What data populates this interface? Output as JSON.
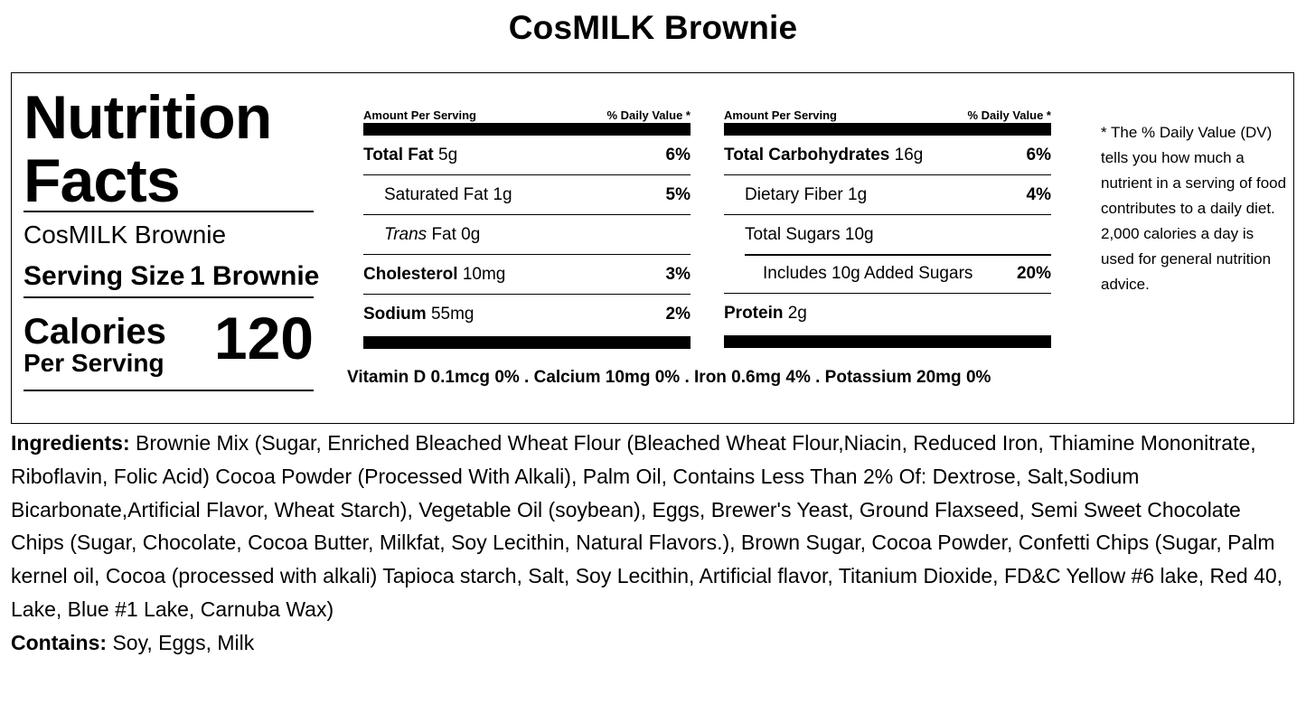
{
  "title": "CosMILK Brownie",
  "label": {
    "heading_line1": "Nutrition",
    "heading_line2": "Facts",
    "product_name": "CosMILK Brownie",
    "serving_size_label": "Serving Size",
    "serving_size_value": "1 Brownie",
    "calories_label": "Calories",
    "per_serving_label": "Per Serving",
    "calories_value": "120",
    "amount_header": "Amount Per Serving",
    "dv_header": "% Daily Value *",
    "left_table": [
      {
        "name": "Total Fat",
        "amount": "5g",
        "dv": "6%"
      },
      {
        "name": "Saturated Fat",
        "amount": "1g",
        "dv": "5%"
      },
      {
        "name": "Trans",
        "amount": "Fat 0g",
        "dv": ""
      },
      {
        "name": "Cholesterol",
        "amount": "10mg",
        "dv": "3%"
      },
      {
        "name": "Sodium",
        "amount": "55mg",
        "dv": "2%"
      }
    ],
    "right_table": [
      {
        "name": "Total Carbohydrates",
        "amount": "16g",
        "dv": "6%"
      },
      {
        "name": "Dietary Fiber",
        "amount": "1g",
        "dv": "4%"
      },
      {
        "name": "Total Sugars",
        "amount": "10g",
        "dv": ""
      },
      {
        "name": "Includes 10g Added Sugars",
        "amount": "",
        "dv": "20%"
      },
      {
        "name": "Protein",
        "amount": "2g",
        "dv": ""
      }
    ],
    "vitamins": "Vitamin D 0.1mcg 0% . Calcium 10mg 0% . Iron 0.6mg 4% . Potassium 20mg 0%",
    "footnote": "* The % Daily Value (DV) tells you how much a nutrient in a serving of food contributes to a daily diet. 2,000 calories a day is used for general nutrition advice."
  },
  "ingredients_label": "Ingredients:",
  "ingredients_text": "Brownie Mix (Sugar, Enriched Bleached Wheat Flour (Bleached Wheat Flour,Niacin, Reduced Iron, Thiamine Mononitrate, Riboflavin, Folic Acid) Cocoa Powder (Processed With Alkali), Palm Oil, Contains Less Than 2% Of: Dextrose, Salt,Sodium Bicarbonate,Artificial Flavor, Wheat Starch), Vegetable Oil (soybean), Eggs, Brewer's Yeast, Ground Flaxseed, Semi Sweet Chocolate Chips (Sugar, Chocolate, Cocoa Butter, Milkfat, Soy Lecithin, Natural Flavors.), Brown Sugar, Cocoa Powder, Confetti Chips (Sugar, Palm kernel oil, Cocoa (processed with alkali) Tapioca starch, Salt, Soy Lecithin, Artificial flavor, Titanium Dioxide, FD&C Yellow #6 lake, Red 40, Lake, Blue #1 Lake, Carnuba Wax)",
  "contains_label": "Contains:",
  "contains_text": "Soy, Eggs, Milk"
}
